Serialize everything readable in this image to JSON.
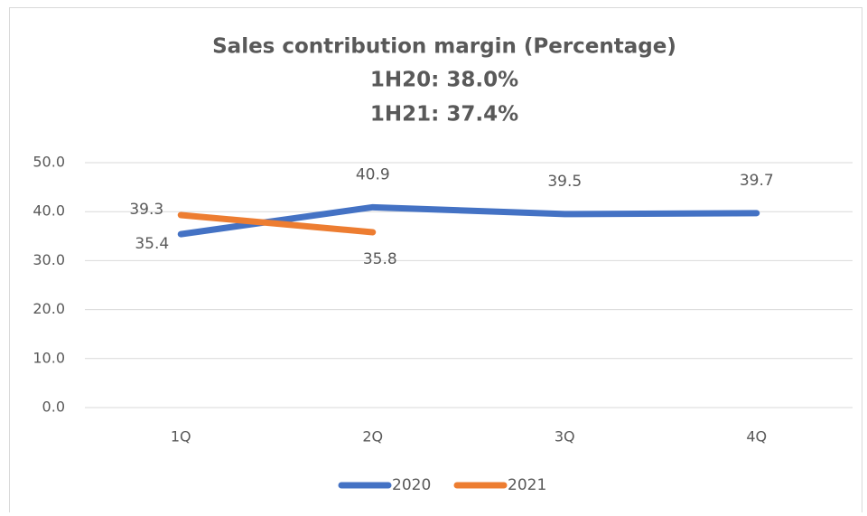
{
  "chart_data": {
    "type": "line",
    "title": "Sales contribution margin (Percentage)",
    "subtitle": [
      "1H20: 38.0%",
      "1H21: 37.4%"
    ],
    "categories": [
      "1Q",
      "2Q",
      "3Q",
      "4Q"
    ],
    "series": [
      {
        "name": "2020",
        "color": "#4472c4",
        "values": [
          35.4,
          40.9,
          39.5,
          39.7
        ]
      },
      {
        "name": "2021",
        "color": "#ed7d31",
        "values": [
          39.3,
          35.8,
          null,
          null
        ]
      }
    ],
    "ylim": [
      0,
      50
    ],
    "yticks": [
      {
        "value": 0,
        "label": "0.0"
      },
      {
        "value": 10,
        "label": "10.0"
      },
      {
        "value": 20,
        "label": "20.0"
      },
      {
        "value": 30,
        "label": "30.0"
      },
      {
        "value": 40,
        "label": "40.0"
      },
      {
        "value": 50,
        "label": "50.0"
      }
    ],
    "grid": true,
    "legend": "bottom"
  }
}
